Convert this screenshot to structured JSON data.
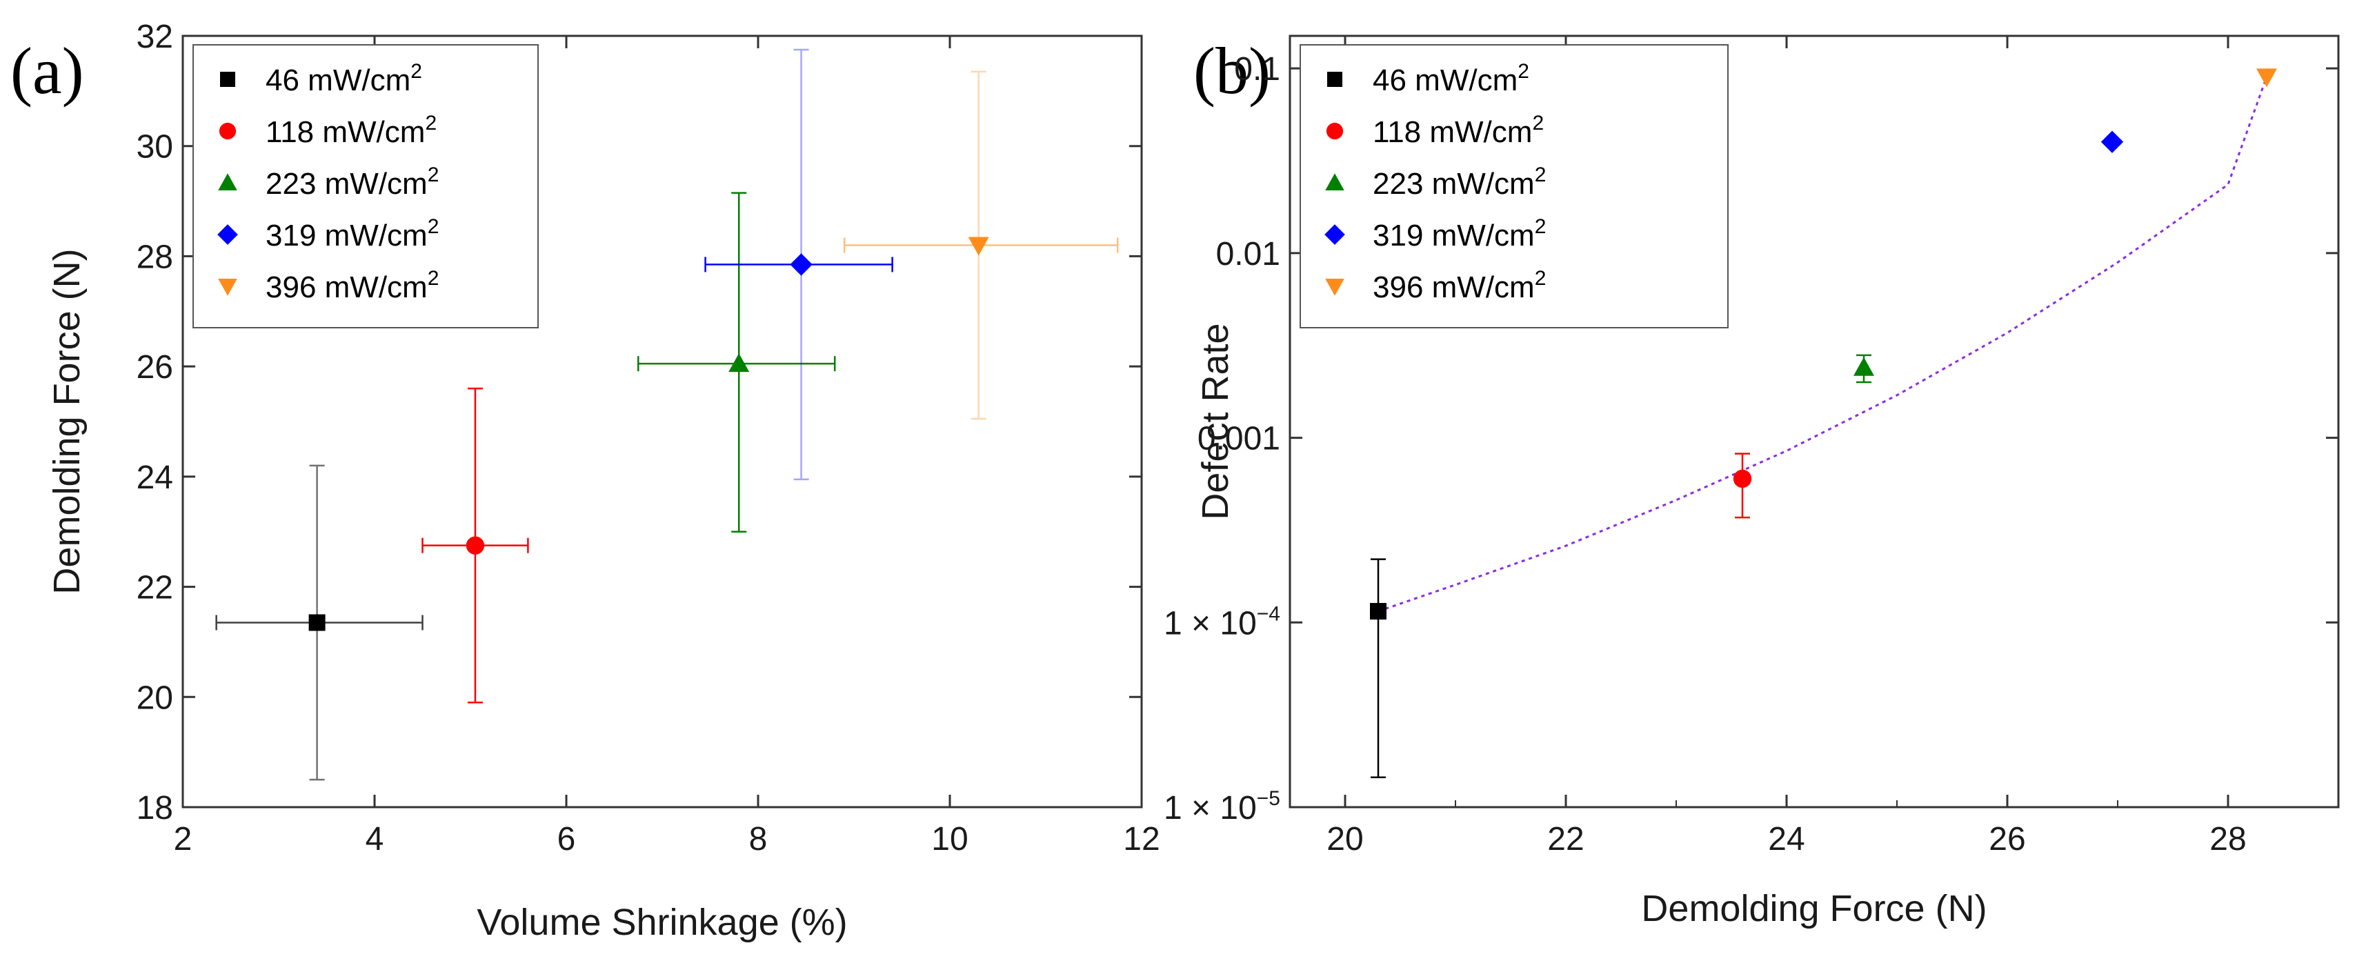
{
  "chart_data": [
    {
      "panel_label": "(a)",
      "type": "scatter",
      "xlabel": "Volume Shrinkage (%)",
      "ylabel": "Demolding Force (N)",
      "xlim": [
        2,
        12
      ],
      "ylim": [
        18,
        32
      ],
      "yscale": "linear",
      "xticks": [
        "2",
        "4",
        "6",
        "8",
        "10",
        "12"
      ],
      "yticks": [
        "18",
        "20",
        "22",
        "24",
        "26",
        "28",
        "30",
        "32"
      ],
      "legend_position": "top-left",
      "legend_unit": "mW/cm",
      "legend_sup": "2",
      "series": [
        {
          "name": "46",
          "marker": "square",
          "color": "#000000",
          "x": 3.4,
          "y": 21.35,
          "xerr": [
            2.35,
            4.5
          ],
          "yerr": [
            18.5,
            24.2
          ]
        },
        {
          "name": "118",
          "marker": "circle",
          "color": "#ff0000",
          "x": 5.05,
          "y": 22.75,
          "xerr": [
            4.5,
            5.6
          ],
          "yerr": [
            19.9,
            25.6
          ]
        },
        {
          "name": "223",
          "marker": "triangle-up",
          "color": "#008000",
          "x": 7.8,
          "y": 26.05,
          "xerr": [
            6.75,
            8.8
          ],
          "yerr": [
            23.0,
            29.15
          ]
        },
        {
          "name": "319",
          "marker": "diamond",
          "color": "#0000ff",
          "x": 8.45,
          "y": 27.85,
          "xerr": [
            7.45,
            9.4
          ],
          "yerr": [
            23.95,
            31.75
          ]
        },
        {
          "name": "396",
          "marker": "triangle-down",
          "color": "#ff8c1a",
          "x": 10.3,
          "y": 28.2,
          "xerr": [
            8.9,
            11.75
          ],
          "yerr": [
            25.05,
            31.35
          ]
        }
      ]
    },
    {
      "panel_label": "(b)",
      "type": "scatter",
      "xlabel": "Demolding Force (N)",
      "ylabel": "Defect Rate",
      "xlim": [
        19.5,
        29
      ],
      "ylim": [
        1e-05,
        0.15
      ],
      "yscale": "log",
      "xticks": [
        "20",
        "22",
        "24",
        "26",
        "28"
      ],
      "yticks": [
        {
          "value": 1e-05,
          "label": "1 × 10",
          "exp": "−5"
        },
        {
          "value": 0.0001,
          "label": "1 × 10",
          "exp": "−4"
        },
        {
          "value": 0.001,
          "label": "0.001",
          "exp": ""
        },
        {
          "value": 0.01,
          "label": "0.01",
          "exp": ""
        },
        {
          "value": 0.1,
          "label": "0.1",
          "exp": ""
        }
      ],
      "legend_position": "top-left",
      "legend_unit": "mW/cm",
      "legend_sup": "2",
      "series": [
        {
          "name": "46",
          "marker": "square",
          "color": "#000000",
          "x": 20.3,
          "y": 0.000115,
          "yerr": [
            1.45e-05,
            0.00022
          ]
        },
        {
          "name": "118",
          "marker": "circle",
          "color": "#ff0000",
          "x": 23.6,
          "y": 0.0006,
          "yerr": [
            0.00037,
            0.00082
          ]
        },
        {
          "name": "223",
          "marker": "triangle-up",
          "color": "#008000",
          "x": 24.7,
          "y": 0.0024,
          "yerr": [
            0.002,
            0.0028
          ]
        },
        {
          "name": "319",
          "marker": "diamond",
          "color": "#0000ff",
          "x": 26.95,
          "y": 0.04,
          "yerr": null
        },
        {
          "name": "396",
          "marker": "triangle-down",
          "color": "#ff8c1a",
          "x": 28.35,
          "y": 0.09,
          "yerr": null
        }
      ],
      "fit_line": {
        "style": "dotted",
        "color": "#8a2be2",
        "x": [
          20.3,
          21,
          22,
          23,
          24,
          25,
          26,
          27,
          28,
          28.35
        ],
        "y": [
          0.000115,
          0.00016,
          0.00026,
          0.00046,
          0.00085,
          0.0017,
          0.0037,
          0.0089,
          0.0235,
          0.09
        ]
      }
    }
  ]
}
